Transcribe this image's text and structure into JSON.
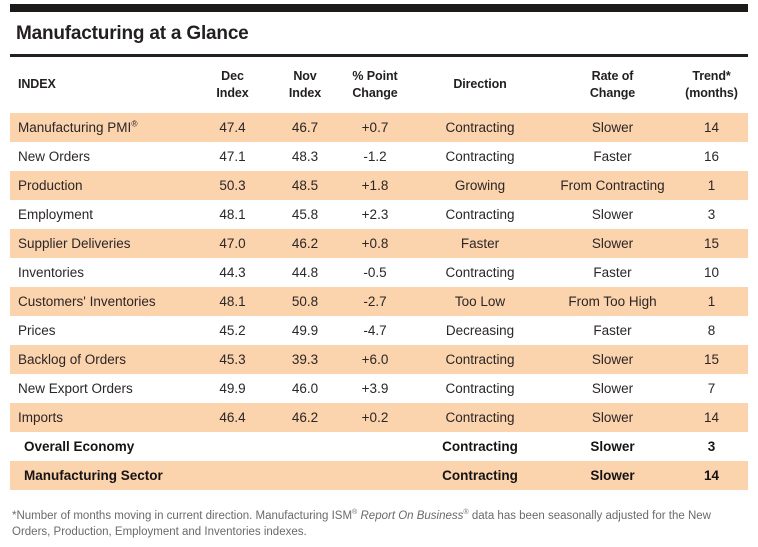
{
  "title": "Manufacturing at a Glance",
  "table": {
    "headers": [
      "INDEX",
      "Dec\nIndex",
      "Nov\nIndex",
      "% Point\nChange",
      "Direction",
      "Rate of\nChange",
      "Trend*\n(months)"
    ],
    "rows": [
      {
        "index": "Manufacturing PMI",
        "index_sup": "®",
        "dec": "47.4",
        "nov": "46.7",
        "change": "+0.7",
        "direction": "Contracting",
        "rate": "Slower",
        "trend": "14",
        "shaded": true,
        "bold": false
      },
      {
        "index": "New Orders",
        "index_sup": "",
        "dec": "47.1",
        "nov": "48.3",
        "change": "-1.2",
        "direction": "Contracting",
        "rate": "Faster",
        "trend": "16",
        "shaded": false,
        "bold": false
      },
      {
        "index": "Production",
        "index_sup": "",
        "dec": "50.3",
        "nov": "48.5",
        "change": "+1.8",
        "direction": "Growing",
        "rate": "From Contracting",
        "trend": "1",
        "shaded": true,
        "bold": false
      },
      {
        "index": "Employment",
        "index_sup": "",
        "dec": "48.1",
        "nov": "45.8",
        "change": "+2.3",
        "direction": "Contracting",
        "rate": "Slower",
        "trend": "3",
        "shaded": false,
        "bold": false
      },
      {
        "index": "Supplier Deliveries",
        "index_sup": "",
        "dec": "47.0",
        "nov": "46.2",
        "change": "+0.8",
        "direction": "Faster",
        "rate": "Slower",
        "trend": "15",
        "shaded": true,
        "bold": false
      },
      {
        "index": "Inventories",
        "index_sup": "",
        "dec": "44.3",
        "nov": "44.8",
        "change": "-0.5",
        "direction": "Contracting",
        "rate": "Faster",
        "trend": "10",
        "shaded": false,
        "bold": false
      },
      {
        "index": "Customers' Inventories",
        "index_sup": "",
        "dec": "48.1",
        "nov": "50.8",
        "change": "-2.7",
        "direction": "Too Low",
        "rate": "From Too High",
        "trend": "1",
        "shaded": true,
        "bold": false
      },
      {
        "index": "Prices",
        "index_sup": "",
        "dec": "45.2",
        "nov": "49.9",
        "change": "-4.7",
        "direction": "Decreasing",
        "rate": "Faster",
        "trend": "8",
        "shaded": false,
        "bold": false
      },
      {
        "index": "Backlog of Orders",
        "index_sup": "",
        "dec": "45.3",
        "nov": "39.3",
        "change": "+6.0",
        "direction": "Contracting",
        "rate": "Slower",
        "trend": "15",
        "shaded": true,
        "bold": false
      },
      {
        "index": "New Export Orders",
        "index_sup": "",
        "dec": "49.9",
        "nov": "46.0",
        "change": "+3.9",
        "direction": "Contracting",
        "rate": "Slower",
        "trend": "7",
        "shaded": false,
        "bold": false
      },
      {
        "index": "Imports",
        "index_sup": "",
        "dec": "46.4",
        "nov": "46.2",
        "change": "+0.2",
        "direction": "Contracting",
        "rate": "Slower",
        "trend": "14",
        "shaded": true,
        "bold": false
      },
      {
        "index": "Overall Economy",
        "index_sup": "",
        "dec": "",
        "nov": "",
        "change": "",
        "direction": "Contracting",
        "rate": "Slower",
        "trend": "3",
        "shaded": false,
        "bold": true
      },
      {
        "index": "Manufacturing Sector",
        "index_sup": "",
        "dec": "",
        "nov": "",
        "change": "",
        "direction": "Contracting",
        "rate": "Slower",
        "trend": "14",
        "shaded": true,
        "bold": true
      }
    ]
  },
  "footnote": {
    "part1": "*Number of months moving in current direction. Manufacturing ISM",
    "reg1": "®",
    "italic": " Report On Business",
    "reg2": "®",
    "part2": " data has been seasonally adjusted for the New Orders, Production, Employment and Inventories indexes."
  },
  "colors": {
    "row_shade": "#fbd3ac",
    "rule": "#1d1b1a",
    "text": "#2b2627",
    "footnote_text": "#6a6a6d"
  }
}
